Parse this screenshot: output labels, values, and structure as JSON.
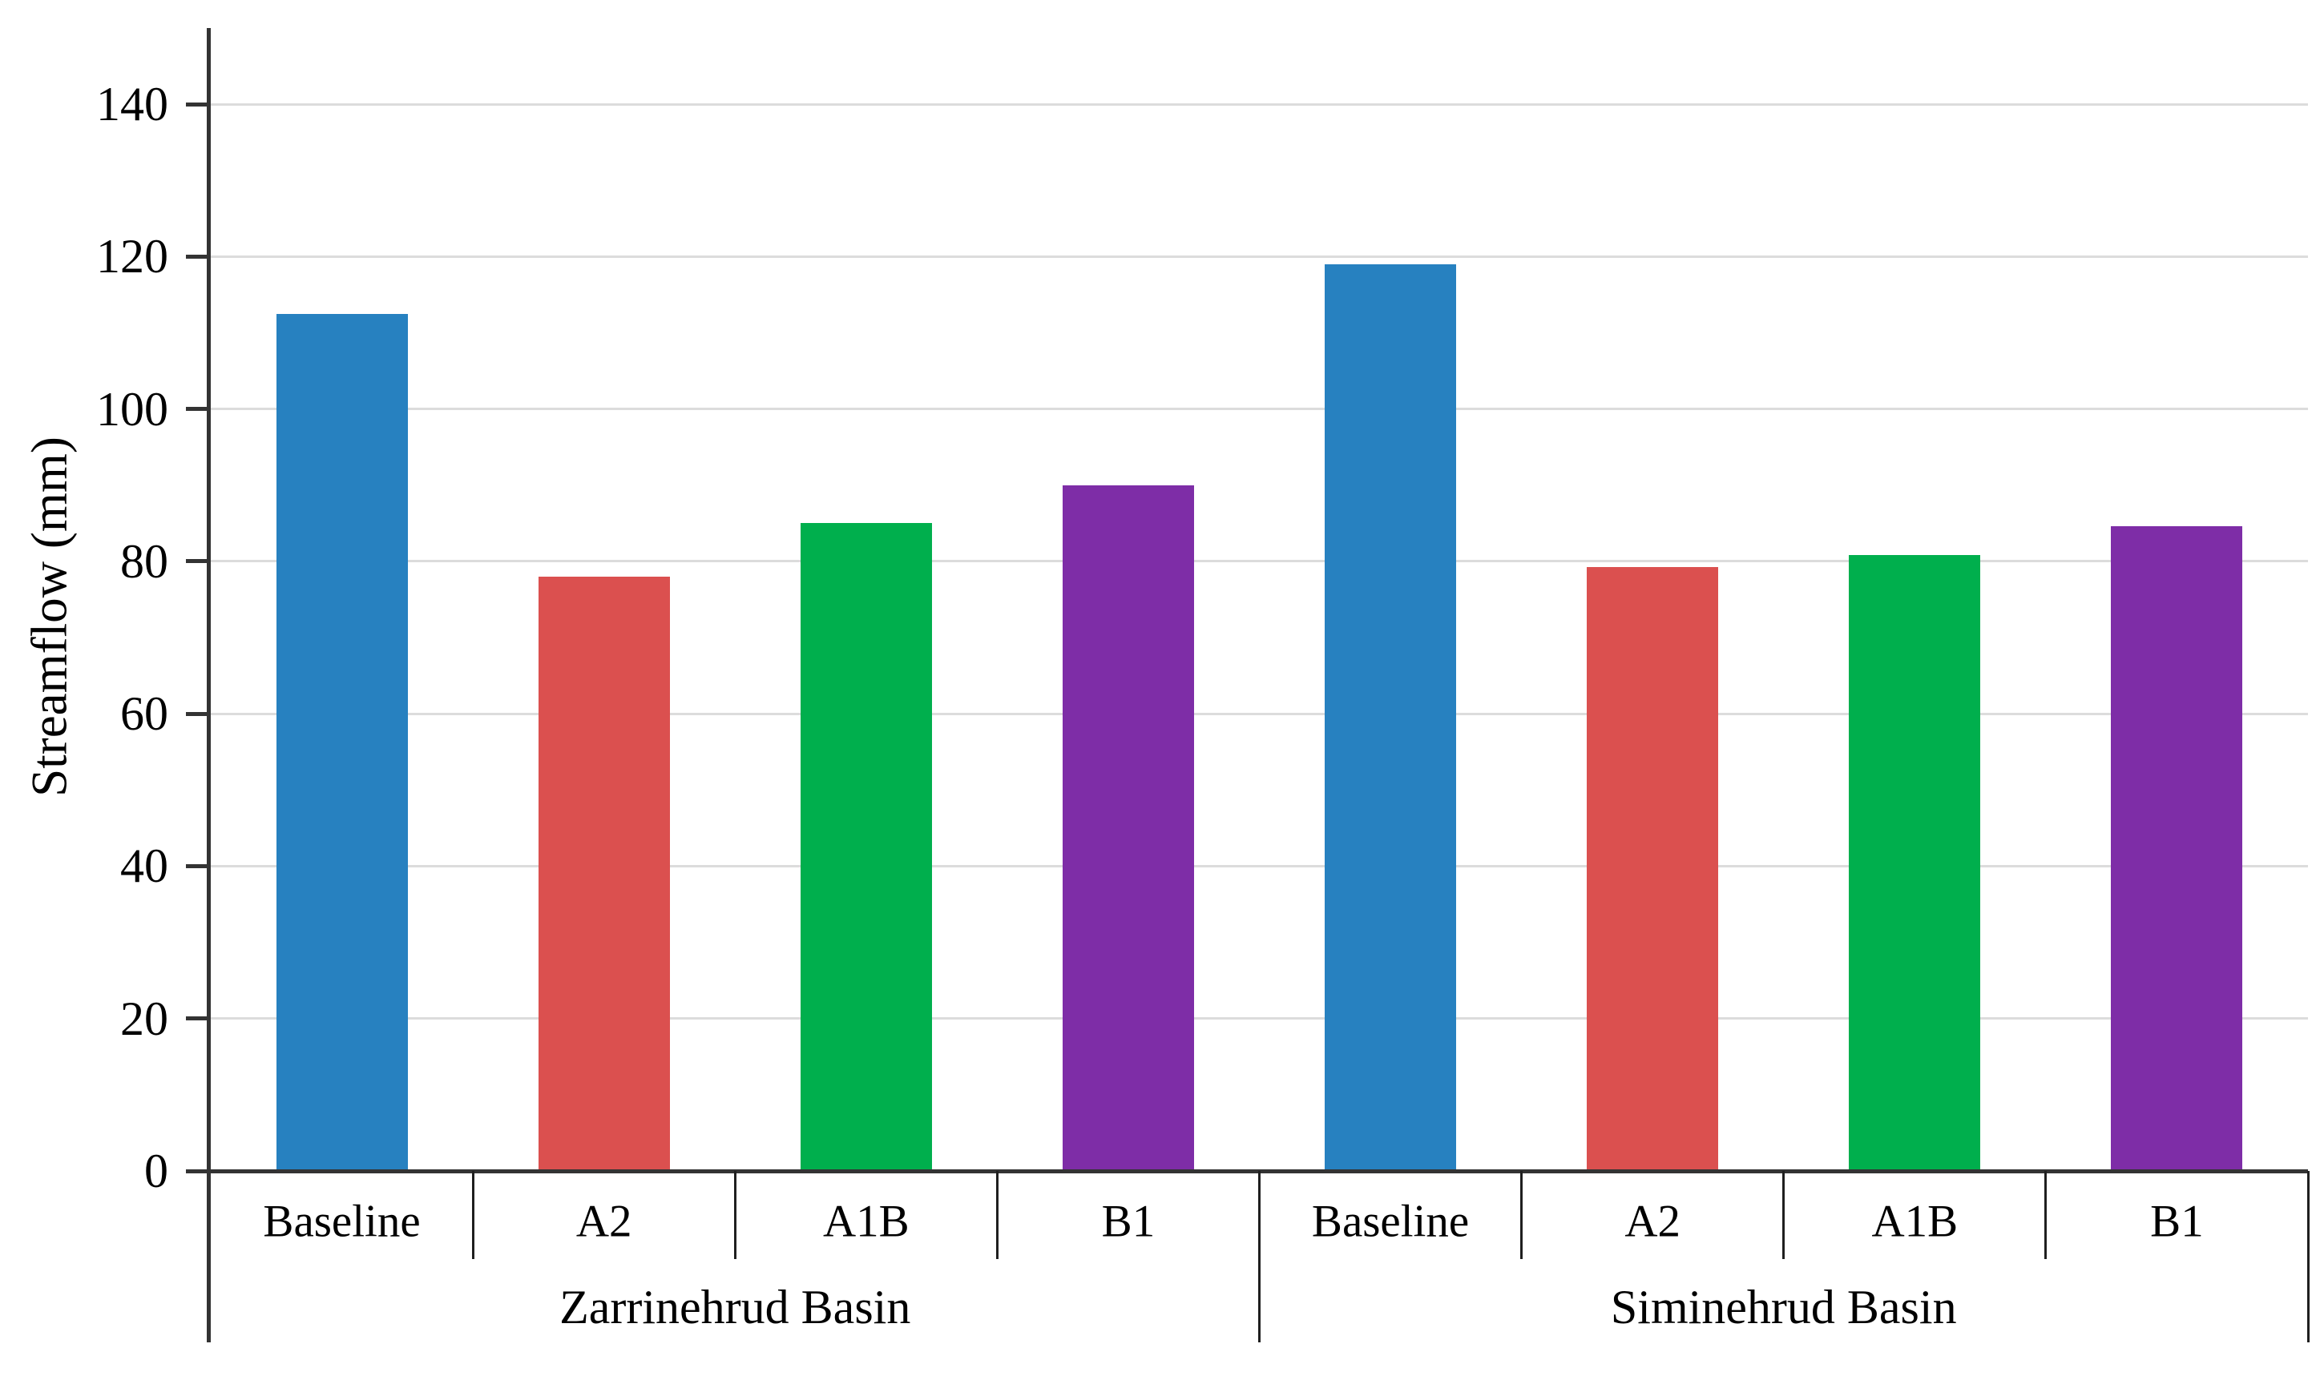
{
  "chart_data": {
    "type": "bar",
    "title": "",
    "xlabel": "",
    "ylabel": "Streamflow (mm)",
    "ylim": [
      0,
      150
    ],
    "ytick_step": 20,
    "yticks": [
      0,
      20,
      40,
      60,
      80,
      100,
      120,
      140
    ],
    "grid": "horizontal-light",
    "legend_position": "none",
    "groups": [
      {
        "label": "Zarrinehrud Basin",
        "categories": [
          "Baseline",
          "A2",
          "A1B",
          "B1"
        ],
        "values": [
          112.5,
          78,
          85,
          90
        ]
      },
      {
        "label": "Siminehrud Basin",
        "categories": [
          "Baseline",
          "A2",
          "A1B",
          "B1"
        ],
        "values": [
          119,
          79.3,
          80.8,
          84.6
        ]
      }
    ],
    "bar_colors": [
      "#2781C0",
      "#DB504F",
      "#00AF4D",
      "#7E2DA7"
    ],
    "colors_by_category": {
      "Baseline": "#2781C0",
      "A2": "#DB504F",
      "A1B": "#00AF4D",
      "B1": "#7E2DA7"
    },
    "axis_color": "#333333",
    "separator_color": "#1F1F1F",
    "gridline_color": "#DCDCDC",
    "text_color": "#000000",
    "background_color": "#FFFFFF"
  }
}
